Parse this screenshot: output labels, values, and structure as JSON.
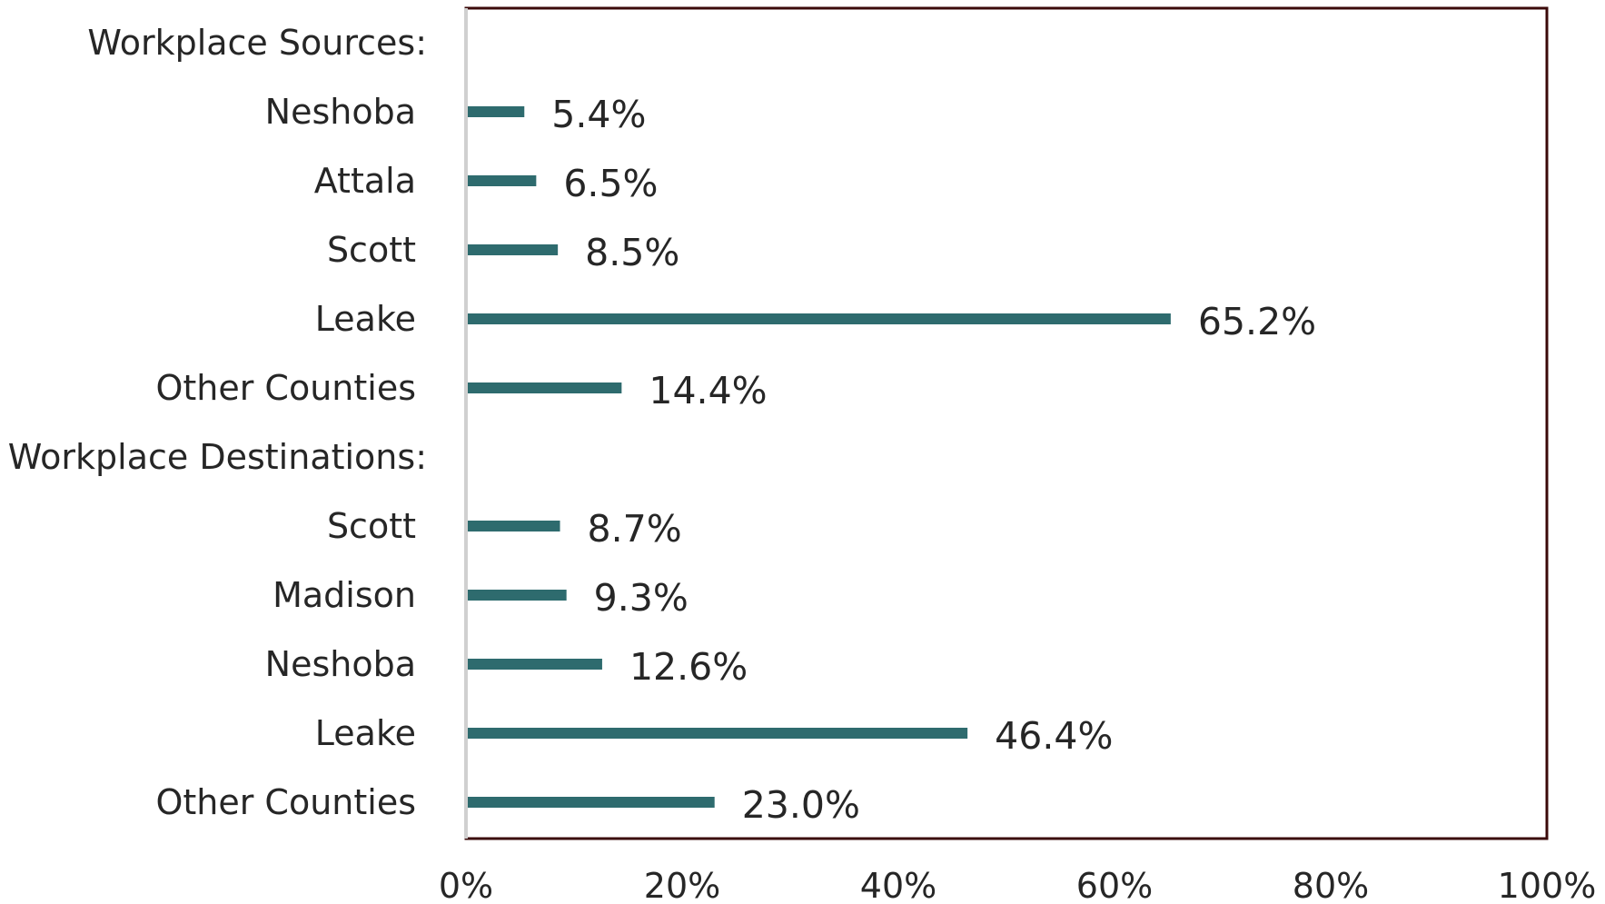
{
  "chart_data": {
    "type": "bar",
    "orientation": "horizontal",
    "categories": [
      "Workplace Sources:",
      "Neshoba",
      "Attala",
      "Scott",
      "Leake",
      "Other Counties",
      "Workplace Destinations:",
      "Scott",
      "Madison",
      "Neshoba",
      "Leake",
      "Other Counties"
    ],
    "values": [
      null,
      5.4,
      6.5,
      8.5,
      65.2,
      14.4,
      null,
      8.7,
      9.3,
      12.6,
      46.4,
      23.0
    ],
    "data_labels": [
      "",
      "5.4%",
      "6.5%",
      "8.5%",
      "65.2%",
      "14.4%",
      "",
      "8.7%",
      "9.3%",
      "12.6%",
      "46.4%",
      "23.0%"
    ],
    "xlim": [
      0,
      100
    ],
    "x_ticks": [
      0,
      20,
      40,
      60,
      80,
      100
    ],
    "x_tick_labels": [
      "0%",
      "20%",
      "40%",
      "60%",
      "80%",
      "100%"
    ],
    "title": "",
    "xlabel": "",
    "ylabel": "",
    "grid": false,
    "legend": "none",
    "colors": {
      "bar": "#2E6B6E",
      "plot_border": "#3B0A0A",
      "axis_line": "#D0D0D0",
      "text": "#262626"
    }
  }
}
